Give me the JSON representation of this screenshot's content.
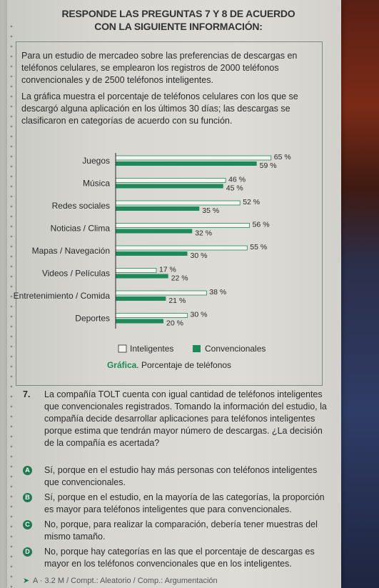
{
  "header": {
    "line1": "RESPONDE LAS PREGUNTAS 7 Y 8 DE ACUERDO",
    "line2": "CON LA SIGUIENTE INFORMACIÓN:"
  },
  "intro": {
    "p1": "Para un estudio de mercadeo sobre las preferencias de descargas en teléfonos celulares, se emplearon los registros de 2000 teléfonos convencionales y de 2500 teléfonos inteligentes.",
    "p2": "La gráfica muestra el porcentaje de teléfonos celulares con los que se descargó alguna aplicación en los últimos 30 días; las descargas se clasificaron en categorías de acuerdo con su función."
  },
  "chart_data": {
    "type": "bar",
    "orientation": "horizontal",
    "categories": [
      "Juegos",
      "Música",
      "Redes sociales",
      "Noticias / Clima",
      "Mapas / Navegación",
      "Videos / Películas",
      "Entretenimiento / Comida",
      "Deportes"
    ],
    "series": [
      {
        "name": "Inteligentes",
        "values": [
          65,
          46,
          52,
          56,
          55,
          17,
          38,
          30
        ],
        "labels": [
          "65 %",
          "46 %",
          "52 %",
          "56 %",
          "55 %",
          "17 %",
          "38 %",
          "30 %"
        ],
        "color": "#f4f2ee"
      },
      {
        "name": "Convencionales",
        "values": [
          59,
          45,
          35,
          32,
          30,
          22,
          21,
          20
        ],
        "labels": [
          "59 %",
          "45 %",
          "35 %",
          "32 %",
          "30 %",
          "22 %",
          "21 %",
          "20 %"
        ],
        "color": "#1e8a5a"
      }
    ],
    "caption_bold": "Gráfica",
    "caption_rest": ". Porcentaje de teléfonos",
    "grid": false,
    "legend": "bottom"
  },
  "question": {
    "number": "7.",
    "text": "La compañía TOLT cuenta con igual cantidad de teléfonos inteligentes que convencionales registrados. Tomando la información del estudio, la compañía decide desarrollar aplicaciones para teléfonos inteligentes porque estima que tendrán mayor número de descargas. ¿La decisión de la compañía es acertada?"
  },
  "options": [
    {
      "letter": "A",
      "text": "Sí, porque en el estudio hay más personas con teléfonos inteligentes que convencionales."
    },
    {
      "letter": "B",
      "text": "Sí, porque en el estudio, en la mayoría de las categorías, la proporción es mayor para teléfonos inteligentes que para convencionales."
    },
    {
      "letter": "C",
      "text": "No, porque, para realizar la comparación, debería tener muestras del mismo tamaño."
    },
    {
      "letter": "D",
      "text": "No, porque hay categorías en las que el porcentaje de descargas es mayor en los teléfonos convencionales que en los inteligentes."
    }
  ],
  "footer": "A · 3.2 M / Compt.: Aleatorio / Comp.: Argumentación",
  "colors": {
    "accent": "#1e8a5a",
    "frame": "#7a8a7e"
  }
}
